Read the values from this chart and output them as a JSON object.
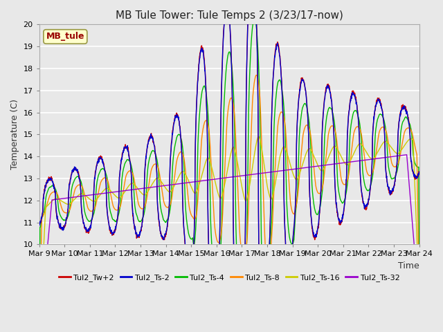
{
  "title": "MB Tule Tower: Tule Temps 2 (3/23/17-now)",
  "ylabel": "Temperature (C)",
  "xlabel": "Time",
  "ylim": [
    10.0,
    20.0
  ],
  "yticks": [
    10,
    11,
    12,
    13,
    14,
    15,
    16,
    17,
    18,
    19,
    20
  ],
  "xtick_labels": [
    "Mar 9",
    "Mar 10",
    "Mar 11",
    "Mar 12",
    "Mar 13",
    "Mar 14",
    "Mar 15",
    "Mar 16",
    "Mar 17",
    "Mar 18",
    "Mar 19",
    "Mar 20",
    "Mar 21",
    "Mar 22",
    "Mar 23",
    "Mar 24"
  ],
  "series_labels": [
    "Tul2_Tw+2",
    "Tul2_Ts-2",
    "Tul2_Ts-4",
    "Tul2_Ts-8",
    "Tul2_Ts-16",
    "Tul2_Ts-32"
  ],
  "series_colors": [
    "#cc0000",
    "#0000cc",
    "#00bb00",
    "#ff8800",
    "#cccc00",
    "#9900cc"
  ],
  "annotation_text": "MB_tule",
  "background_color": "#e8e8e8",
  "plot_background": "#e8e8e8",
  "grid_color": "#ffffff",
  "title_fontsize": 11,
  "n_points": 1500
}
